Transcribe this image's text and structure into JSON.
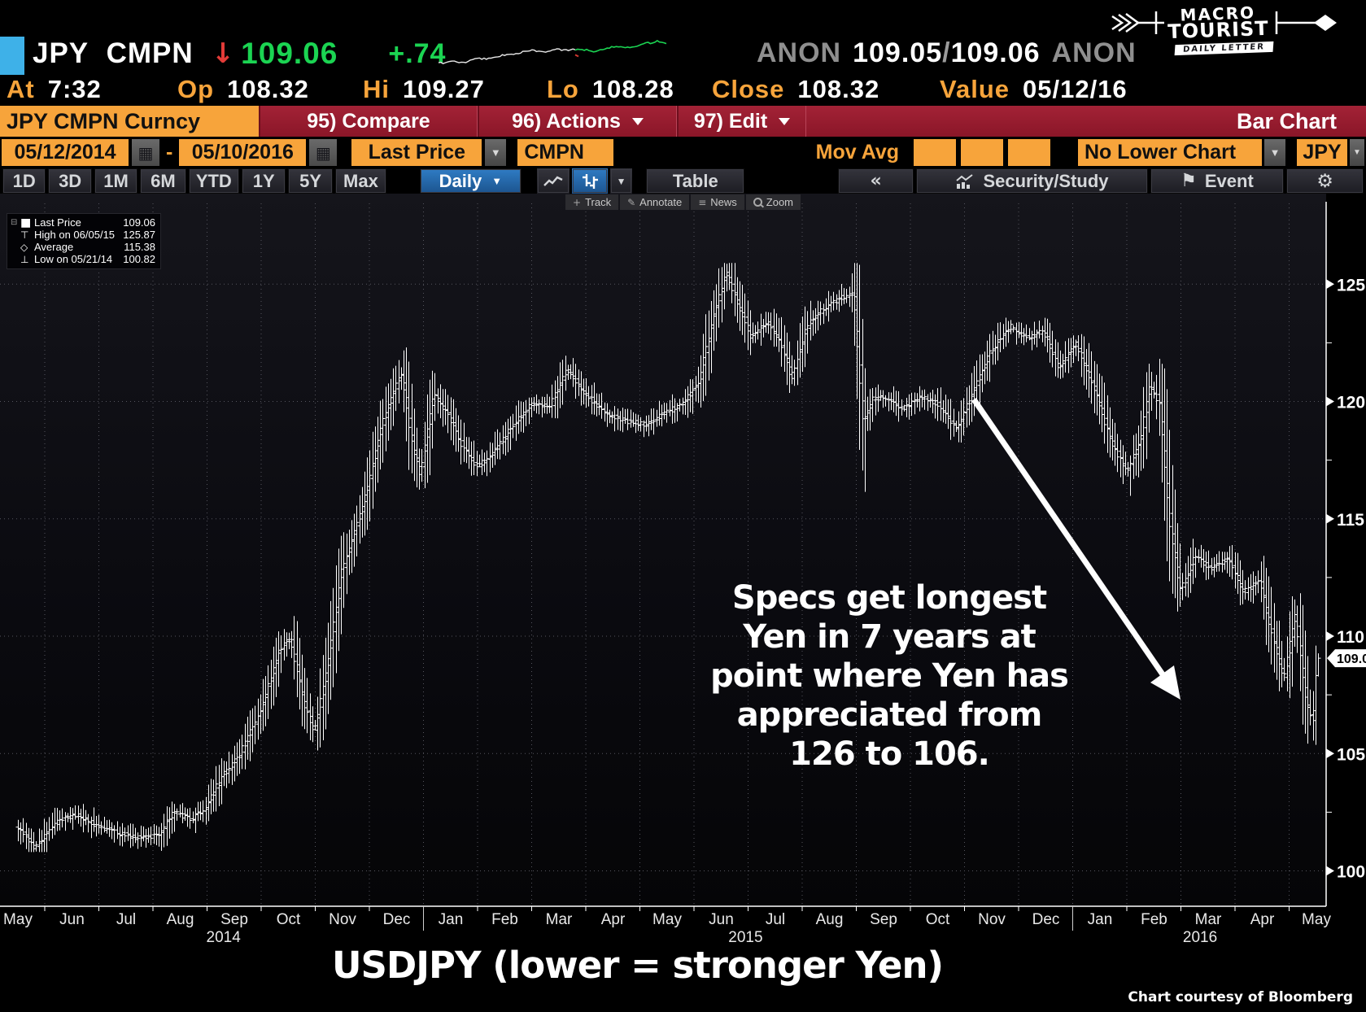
{
  "colors": {
    "accent_orange": "#f7a43b",
    "menu_red": "#961c2e",
    "ticker_cyan": "#3eb1e8",
    "price_green": "#1bd452",
    "selected_blue": "#2268ae",
    "bar_white": "#ffffff",
    "grid_gray": "#55555e",
    "anon_gray": "#8f8f8f"
  },
  "icons": {
    "down_arrow": "↓",
    "calendar": "▦",
    "dropdown": "▼",
    "dropdown_small": "▼",
    "collapse": "«",
    "flag": "⚑",
    "gear": "⚙",
    "track_cross": "+",
    "annotate_pencil": "✎",
    "news_lines": "≡",
    "tree_collapse": "⊟",
    "legend_square": "■",
    "legend_high": "⊤",
    "legend_avg": "◇",
    "legend_low": "⊥"
  },
  "topbar": {
    "ticker": "JPY",
    "type": "CMPN",
    "last": "109.06",
    "change": "+.74",
    "bid_label": "ANON",
    "bid": "109.05",
    "slash": "/",
    "ask": "109.06",
    "ask_label": "ANON",
    "stats": [
      {
        "label": "At",
        "value": "7:32"
      },
      {
        "label": "Op",
        "value": "108.32"
      },
      {
        "label": "Hi",
        "value": "109.27"
      },
      {
        "label": "Lo",
        "value": "108.28"
      },
      {
        "label": "Close",
        "value": "108.32"
      },
      {
        "label": "Value",
        "value": "05/12/16"
      }
    ],
    "logo": {
      "line1": "MACRO",
      "line2": "TOURIST",
      "banner": "DAILY LETTER"
    }
  },
  "menubar": {
    "security": "JPY CMPN Curncy",
    "buttons": [
      {
        "label": "95) Compare"
      },
      {
        "label": "96) Actions"
      },
      {
        "label": "97) Edit"
      }
    ],
    "right_label": "Bar Chart"
  },
  "fieldbar": {
    "date_from": "05/12/2014",
    "separator": "-",
    "date_to": "05/10/2016",
    "price_type": "Last Price",
    "source": "CMPN",
    "mov_avg_label": "Mov Avg",
    "lower_chart": "No Lower Chart",
    "currency": "JPY"
  },
  "toolbar": {
    "periods": [
      "1D",
      "3D",
      "1M",
      "6M",
      "YTD",
      "1Y",
      "5Y",
      "Max"
    ],
    "frequency": "Daily",
    "table_label": "Table",
    "security_study": "Security/Study",
    "event_label": "Event"
  },
  "chart_tools": [
    {
      "label": "Track"
    },
    {
      "label": "Annotate"
    },
    {
      "label": "News"
    },
    {
      "label": "Zoom"
    }
  ],
  "legend": {
    "items": [
      {
        "label": "Last Price",
        "value": "109.06"
      },
      {
        "label": "High on 06/05/15",
        "value": "125.87"
      },
      {
        "label": "Average",
        "value": "115.38"
      },
      {
        "label": "Low on 05/21/14",
        "value": "100.82"
      }
    ]
  },
  "annotation": {
    "lines": [
      "Specs get longest",
      "Yen in 7 years at",
      "point where Yen has",
      "appreciated from",
      "126 to 106."
    ]
  },
  "caption": "USDJPY (lower = stronger Yen)",
  "credit": "Chart courtesy of Bloomberg",
  "chart_data": {
    "type": "ohlc_bar",
    "title": "USDJPY daily bars 05/12/2014 - 05/10/2016",
    "x_start": "2014-05-12",
    "x_end": "2016-05-10",
    "ylim": [
      98.5,
      128
    ],
    "y_ticks": [
      100,
      105,
      110,
      115,
      120,
      125
    ],
    "y_minor_ticks": [
      102.5,
      107.5,
      112.5,
      117.5,
      122.5
    ],
    "last_price": 109.06,
    "high": 125.87,
    "high_date": "06/05/15",
    "average": 115.38,
    "low": 100.82,
    "low_date": "05/21/14",
    "month_labels": [
      "May",
      "Jun",
      "Jul",
      "Aug",
      "Sep",
      "Oct",
      "Nov",
      "Dec",
      "Jan",
      "Feb",
      "Mar",
      "Apr",
      "May",
      "Jun",
      "Jul",
      "Aug",
      "Sep",
      "Oct",
      "Nov",
      "Dec",
      "Jan",
      "Feb",
      "Mar",
      "Apr",
      "May"
    ],
    "year_labels": [
      {
        "label": "2014",
        "month_index": 3.8
      },
      {
        "label": "2015",
        "month_index": 13.45
      },
      {
        "label": "2016",
        "month_index": 21.85
      }
    ],
    "anchors": [
      [
        0,
        101.9
      ],
      [
        0.2,
        101.4
      ],
      [
        0.32,
        100.95
      ],
      [
        0.55,
        101.6
      ],
      [
        0.8,
        102.2
      ],
      [
        1.1,
        102.4
      ],
      [
        1.5,
        101.9
      ],
      [
        1.9,
        101.6
      ],
      [
        2.2,
        101.4
      ],
      [
        2.6,
        101.5
      ],
      [
        2.9,
        102.5
      ],
      [
        3.2,
        102.2
      ],
      [
        3.5,
        102.7
      ],
      [
        3.75,
        103.9
      ],
      [
        4.1,
        104.9
      ],
      [
        4.5,
        106.8
      ],
      [
        4.85,
        109.4
      ],
      [
        5.05,
        109.9
      ],
      [
        5.3,
        107.2
      ],
      [
        5.5,
        105.9
      ],
      [
        5.75,
        108.9
      ],
      [
        6.0,
        112.8
      ],
      [
        6.4,
        115.6
      ],
      [
        6.75,
        119.1
      ],
      [
        7.1,
        121.3
      ],
      [
        7.3,
        118.2
      ],
      [
        7.45,
        116.9
      ],
      [
        7.7,
        120.3
      ],
      [
        7.95,
        119.5
      ],
      [
        8.2,
        118.2
      ],
      [
        8.5,
        117.2
      ],
      [
        8.8,
        117.8
      ],
      [
        9.1,
        118.8
      ],
      [
        9.5,
        119.9
      ],
      [
        9.85,
        119.8
      ],
      [
        10.15,
        121.4
      ],
      [
        10.5,
        120.3
      ],
      [
        10.85,
        119.5
      ],
      [
        11.2,
        119.2
      ],
      [
        11.6,
        119.0
      ],
      [
        11.95,
        119.5
      ],
      [
        12.3,
        119.9
      ],
      [
        12.6,
        120.9
      ],
      [
        12.85,
        123.5
      ],
      [
        13.1,
        125.5
      ],
      [
        13.3,
        124.3
      ],
      [
        13.55,
        122.8
      ],
      [
        13.85,
        123.4
      ],
      [
        14.1,
        122.5
      ],
      [
        14.3,
        121.0
      ],
      [
        14.6,
        123.3
      ],
      [
        14.9,
        124.0
      ],
      [
        15.2,
        124.4
      ],
      [
        15.45,
        124.6
      ],
      [
        15.62,
        119.2
      ],
      [
        15.8,
        120.1
      ],
      [
        16.0,
        120.2
      ],
      [
        16.35,
        119.7
      ],
      [
        16.7,
        120.2
      ],
      [
        17.0,
        119.9
      ],
      [
        17.35,
        118.8
      ],
      [
        17.7,
        120.7
      ],
      [
        18.0,
        122.2
      ],
      [
        18.35,
        123.2
      ],
      [
        18.65,
        122.7
      ],
      [
        18.95,
        123.0
      ],
      [
        19.25,
        121.4
      ],
      [
        19.55,
        122.5
      ],
      [
        19.9,
        120.5
      ],
      [
        20.2,
        118.3
      ],
      [
        20.5,
        117.0
      ],
      [
        20.75,
        118.4
      ],
      [
        20.92,
        120.7
      ],
      [
        21.1,
        119.9
      ],
      [
        21.28,
        114.9
      ],
      [
        21.48,
        111.9
      ],
      [
        21.75,
        113.4
      ],
      [
        22.05,
        112.9
      ],
      [
        22.35,
        113.3
      ],
      [
        22.65,
        111.9
      ],
      [
        22.95,
        112.4
      ],
      [
        23.15,
        110.2
      ],
      [
        23.4,
        108.2
      ],
      [
        23.6,
        111.0
      ],
      [
        23.8,
        107.2
      ],
      [
        23.92,
        106.3
      ],
      [
        24,
        108.8
      ]
    ],
    "spikes": [
      {
        "m": 0.32,
        "low": 100.82
      },
      {
        "m": 13.1,
        "high": 125.87
      },
      {
        "m": 15.62,
        "low": 116.15
      },
      {
        "m": 20.55,
        "low": 115.98
      },
      {
        "m": 23.92,
        "low": 105.55
      }
    ],
    "last_bar": {
      "open": 108.32,
      "high": 109.27,
      "low": 108.28,
      "close": 109.06
    },
    "intraday_sparkline": {
      "points": [
        [
          0,
          0.22
        ],
        [
          0.06,
          0.3
        ],
        [
          0.11,
          0.24
        ],
        [
          0.17,
          0.4
        ],
        [
          0.23,
          0.38
        ],
        [
          0.29,
          0.52
        ],
        [
          0.35,
          0.58
        ],
        [
          0.41,
          0.66
        ],
        [
          0.46,
          0.62
        ],
        [
          0.52,
          0.7
        ],
        [
          0.57,
          0.67
        ],
        [
          0.62,
          0.72
        ],
        [
          0.68,
          0.64
        ],
        [
          0.73,
          0.74
        ],
        [
          0.79,
          0.8
        ],
        [
          0.85,
          0.78
        ],
        [
          0.91,
          0.9
        ],
        [
          0.96,
          0.97
        ],
        [
          1,
          0.93
        ]
      ],
      "green_from": 0.6
    }
  }
}
